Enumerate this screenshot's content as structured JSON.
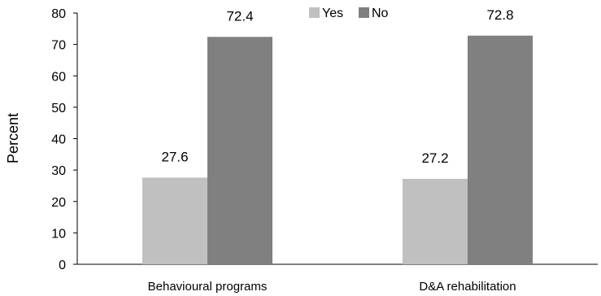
{
  "chart_data": {
    "type": "bar",
    "title": "",
    "xlabel": "",
    "ylabel": "Percent",
    "ylim": [
      0,
      80
    ],
    "yticks": [
      0,
      10,
      20,
      30,
      40,
      50,
      60,
      70,
      80
    ],
    "categories": [
      "Behavioural programs",
      "D&A rehabilitation"
    ],
    "series": [
      {
        "name": "Yes",
        "values": [
          27.6,
          27.2
        ],
        "color": "#c0c0c0"
      },
      {
        "name": "No",
        "values": [
          72.4,
          72.8
        ],
        "color": "#808080"
      }
    ],
    "data_labels": [
      [
        "27.6",
        "27.2"
      ],
      [
        "72.4",
        "72.8"
      ]
    ],
    "grid": false,
    "legend_position": "top-center"
  }
}
